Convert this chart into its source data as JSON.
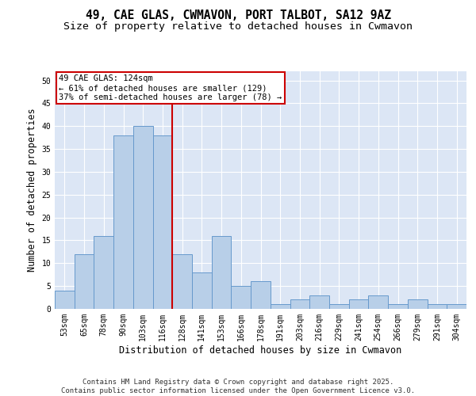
{
  "title_line1": "49, CAE GLAS, CWMAVON, PORT TALBOT, SA12 9AZ",
  "title_line2": "Size of property relative to detached houses in Cwmavon",
  "xlabel": "Distribution of detached houses by size in Cwmavon",
  "ylabel": "Number of detached properties",
  "categories": [
    "53sqm",
    "65sqm",
    "78sqm",
    "90sqm",
    "103sqm",
    "116sqm",
    "128sqm",
    "141sqm",
    "153sqm",
    "166sqm",
    "178sqm",
    "191sqm",
    "203sqm",
    "216sqm",
    "229sqm",
    "241sqm",
    "254sqm",
    "266sqm",
    "279sqm",
    "291sqm",
    "304sqm"
  ],
  "values": [
    4,
    12,
    16,
    38,
    40,
    38,
    12,
    8,
    16,
    5,
    6,
    1,
    2,
    3,
    1,
    2,
    3,
    1,
    2,
    1,
    1
  ],
  "bar_color": "#b8cfe8",
  "bar_edge_color": "#6699cc",
  "bar_edge_width": 0.7,
  "plot_bg_color": "#dce6f5",
  "fig_bg_color": "#ffffff",
  "vline_color": "#cc0000",
  "annotation_line1": "49 CAE GLAS: 124sqm",
  "annotation_line2": "← 61% of detached houses are smaller (129)",
  "annotation_line3": "37% of semi-detached houses are larger (78) →",
  "annotation_box_color": "#cc0000",
  "ylim": [
    0,
    52
  ],
  "yticks": [
    0,
    5,
    10,
    15,
    20,
    25,
    30,
    35,
    40,
    45,
    50
  ],
  "footer_line1": "Contains HM Land Registry data © Crown copyright and database right 2025.",
  "footer_line2": "Contains public sector information licensed under the Open Government Licence v3.0.",
  "title_fontsize": 10.5,
  "subtitle_fontsize": 9.5,
  "axis_label_fontsize": 8.5,
  "tick_fontsize": 7,
  "annotation_fontsize": 7.5,
  "footer_fontsize": 6.5
}
